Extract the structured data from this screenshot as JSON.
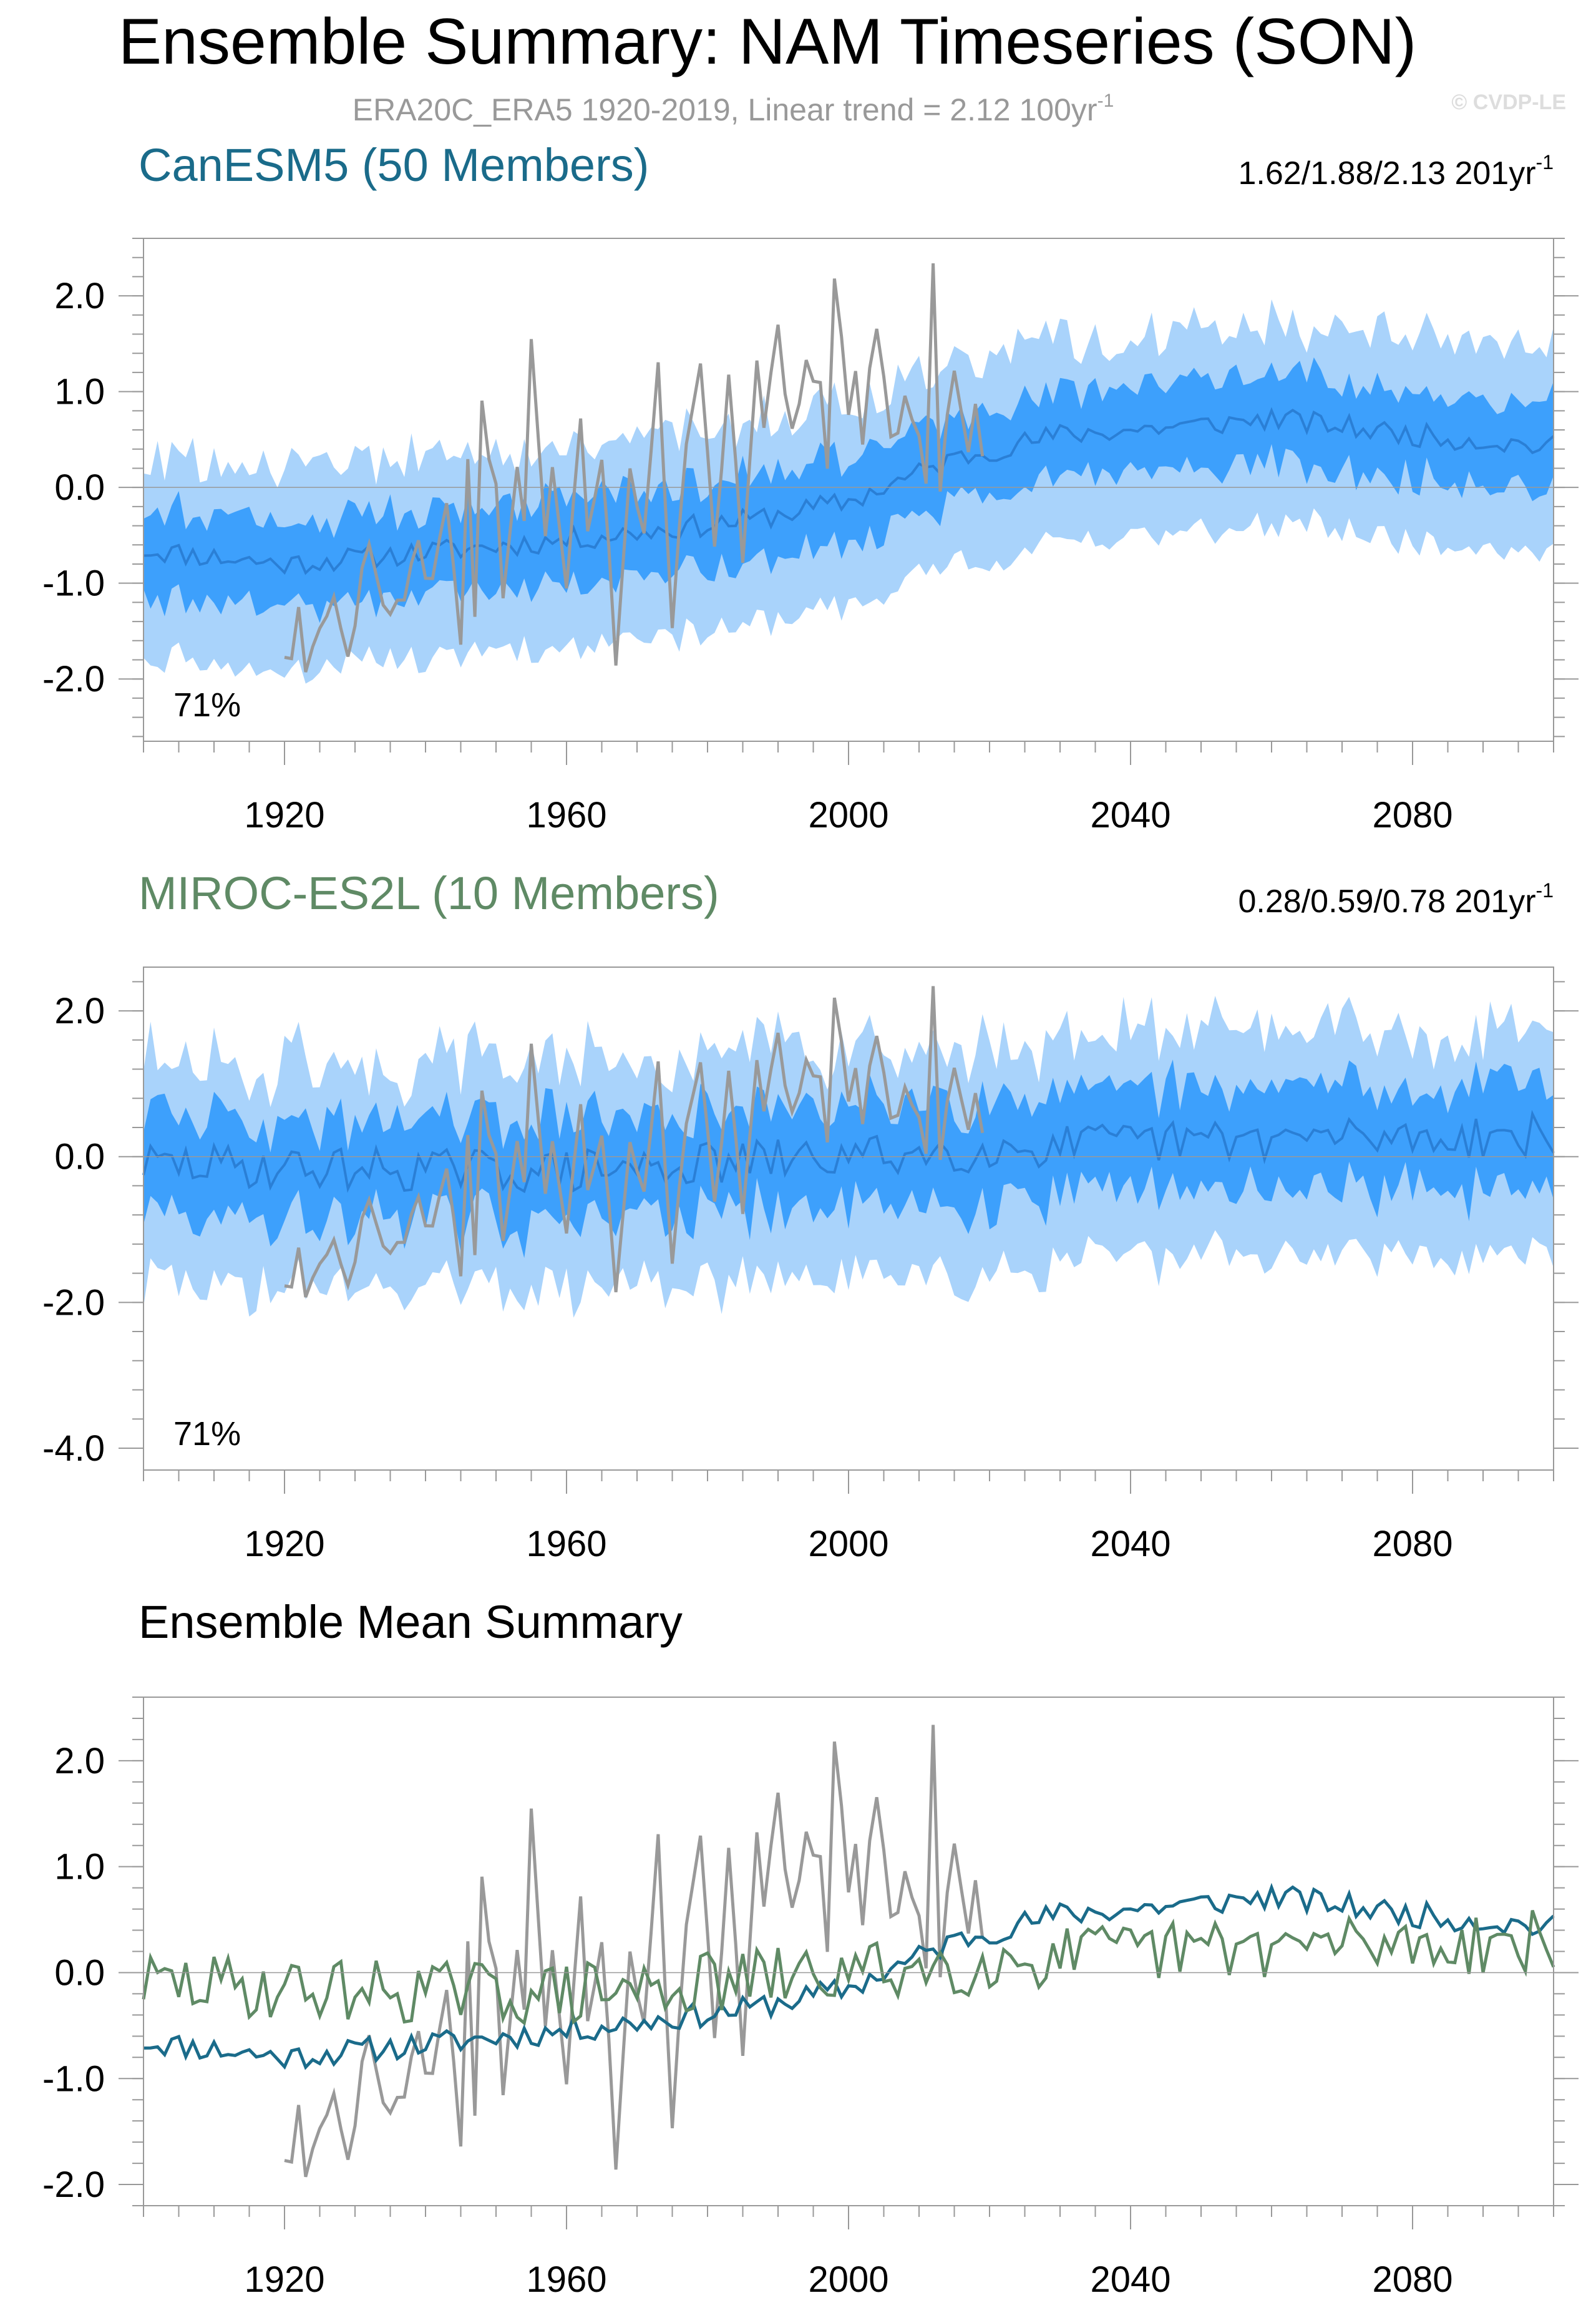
{
  "title": "Ensemble Summary: NAM Timeseries (SON)",
  "subtitle": {
    "prefix": "ERA20C_ERA5 1920-2019, Linear trend = 2.12 100yr",
    "exponent": "-1"
  },
  "watermark": "© CVDP-LE",
  "colors": {
    "obs": "#999999",
    "canesm5": "#1a6b8a",
    "miroc": "#5f8a65",
    "band_outer": "#a9d3fb",
    "band_inner": "#3da0fc",
    "mean_line": "#2a7fd6"
  },
  "chart_data": [
    {
      "type": "area",
      "title": "CanESM5 (50 Members)",
      "trend_label": "1.62/1.88/2.13 201yr",
      "trend_exponent": "-1",
      "percent_label": "71%",
      "xlim": [
        1900,
        2100
      ],
      "ylim": [
        -2.65,
        2.6
      ],
      "yticks": [
        -2.0,
        -1.0,
        0.0,
        1.0,
        2.0
      ],
      "ytick_labels": [
        "-2.0",
        "-1.0",
        "0.0",
        "1.0",
        "2.0"
      ],
      "xticks": [
        1920,
        1960,
        2000,
        2040,
        2080
      ],
      "xtick_labels": [
        "1920",
        "1960",
        "2000",
        "2040",
        "2080"
      ],
      "mean_keypoints": [
        [
          1900,
          -0.65
        ],
        [
          1920,
          -0.8
        ],
        [
          1960,
          -0.55
        ],
        [
          1985,
          -0.35
        ],
        [
          2000,
          -0.15
        ],
        [
          2015,
          0.3
        ],
        [
          2030,
          0.55
        ],
        [
          2050,
          0.65
        ],
        [
          2060,
          0.72
        ],
        [
          2080,
          0.55
        ],
        [
          2100,
          0.42
        ]
      ],
      "noise_amp": 0.12,
      "inner_half_width": 0.45,
      "outer_half_width": 1.0,
      "band_noise": 0.25,
      "seed": 11
    },
    {
      "type": "area",
      "title": "MIROC-ES2L (10 Members)",
      "trend_label": "0.28/0.59/0.78 201yr",
      "trend_exponent": "-1",
      "percent_label": "71%",
      "xlim": [
        1900,
        2100
      ],
      "ylim": [
        -4.3,
        2.6
      ],
      "yticks": [
        -4.0,
        -2.0,
        0.0,
        2.0
      ],
      "ytick_labels": [
        "-4.0",
        "-2.0",
        "0.0",
        "2.0"
      ],
      "xticks": [
        1920,
        1960,
        2000,
        2040,
        2080
      ],
      "xtick_labels": [
        "1920",
        "1960",
        "2000",
        "2040",
        "2080"
      ],
      "mean_keypoints": [
        [
          1900,
          -0.1
        ],
        [
          1920,
          -0.15
        ],
        [
          1960,
          -0.2
        ],
        [
          2000,
          0.0
        ],
        [
          2030,
          0.15
        ],
        [
          2060,
          0.25
        ],
        [
          2100,
          0.3
        ]
      ],
      "noise_amp": 0.3,
      "inner_half_width": 0.7,
      "outer_half_width": 1.45,
      "band_noise": 0.45,
      "seed": 29
    },
    {
      "type": "line",
      "title": "Ensemble Mean Summary",
      "xlim": [
        1900,
        2100
      ],
      "ylim": [
        -2.2,
        2.6
      ],
      "yticks": [
        -2.0,
        -1.0,
        0.0,
        1.0,
        2.0
      ],
      "ytick_labels": [
        "-2.0",
        "-1.0",
        "0.0",
        "1.0",
        "2.0"
      ],
      "xticks": [
        1920,
        1960,
        2000,
        2040,
        2080
      ],
      "xtick_labels": [
        "1920",
        "1960",
        "2000",
        "2040",
        "2080"
      ],
      "series": [
        {
          "name": "CanESM5",
          "mean_keypoints": [
            [
              1900,
              -0.65
            ],
            [
              1920,
              -0.8
            ],
            [
              1960,
              -0.55
            ],
            [
              1985,
              -0.35
            ],
            [
              2000,
              -0.15
            ],
            [
              2015,
              0.3
            ],
            [
              2030,
              0.55
            ],
            [
              2050,
              0.65
            ],
            [
              2060,
              0.72
            ],
            [
              2080,
              0.55
            ],
            [
              2100,
              0.42
            ]
          ],
          "noise_amp": 0.12,
          "seed": 11
        },
        {
          "name": "MIROC-ES2L",
          "mean_keypoints": [
            [
              1900,
              -0.1
            ],
            [
              1920,
              -0.15
            ],
            [
              1960,
              -0.2
            ],
            [
              2000,
              0.0
            ],
            [
              2030,
              0.15
            ],
            [
              2060,
              0.25
            ],
            [
              2100,
              0.3
            ]
          ],
          "noise_amp": 0.3,
          "seed": 29
        }
      ]
    }
  ],
  "observations": {
    "name": "ERA20C_ERA5",
    "years": [
      1920,
      2019
    ],
    "anchor_points": [
      [
        1920,
        -1.7
      ],
      [
        1921,
        -1.8
      ],
      [
        1922,
        -1.1
      ],
      [
        1923,
        -1.9
      ],
      [
        1927,
        -1.2
      ],
      [
        1929,
        -1.7
      ],
      [
        1932,
        -0.6
      ],
      [
        1934,
        -1.3
      ],
      [
        1936,
        -1.3
      ],
      [
        1939,
        -0.5
      ],
      [
        1941,
        -1.1
      ],
      [
        1943,
        -0.2
      ],
      [
        1945,
        -1.5
      ],
      [
        1946,
        0.4
      ],
      [
        1947,
        -1.4
      ],
      [
        1948,
        0.9
      ],
      [
        1950,
        -0.1
      ],
      [
        1951,
        -1.1
      ],
      [
        1953,
        0.1
      ],
      [
        1954,
        -0.4
      ],
      [
        1955,
        1.4
      ],
      [
        1957,
        -0.6
      ],
      [
        1958,
        0.3
      ],
      [
        1960,
        -1.1
      ],
      [
        1962,
        0.6
      ],
      [
        1963,
        -0.6
      ],
      [
        1965,
        0.4
      ],
      [
        1967,
        -1.8
      ],
      [
        1969,
        0.3
      ],
      [
        1971,
        -0.5
      ],
      [
        1973,
        1.4
      ],
      [
        1975,
        -1.6
      ],
      [
        1977,
        0.6
      ],
      [
        1979,
        1.2
      ],
      [
        1981,
        -0.5
      ],
      [
        1983,
        1.1
      ],
      [
        1985,
        -0.7
      ],
      [
        1987,
        1.3
      ],
      [
        1988,
        0.6
      ],
      [
        1990,
        1.7
      ],
      [
        1992,
        0.5
      ],
      [
        1994,
        1.2
      ],
      [
        1996,
        1.0
      ],
      [
        1997,
        0.2
      ],
      [
        1998,
        2.25
      ],
      [
        2000,
        0.7
      ],
      [
        2001,
        1.3
      ],
      [
        2002,
        0.5
      ],
      [
        2004,
        1.7
      ],
      [
        2006,
        0.4
      ],
      [
        2008,
        0.9
      ],
      [
        2010,
        0.6
      ],
      [
        2011,
        -0.1
      ],
      [
        2012,
        2.25
      ],
      [
        2013,
        0.1
      ],
      [
        2015,
        1.2
      ],
      [
        2017,
        0.3
      ],
      [
        2018,
        0.9
      ],
      [
        2019,
        0.4
      ]
    ],
    "noise_amp": 0.15,
    "seed": 47
  }
}
